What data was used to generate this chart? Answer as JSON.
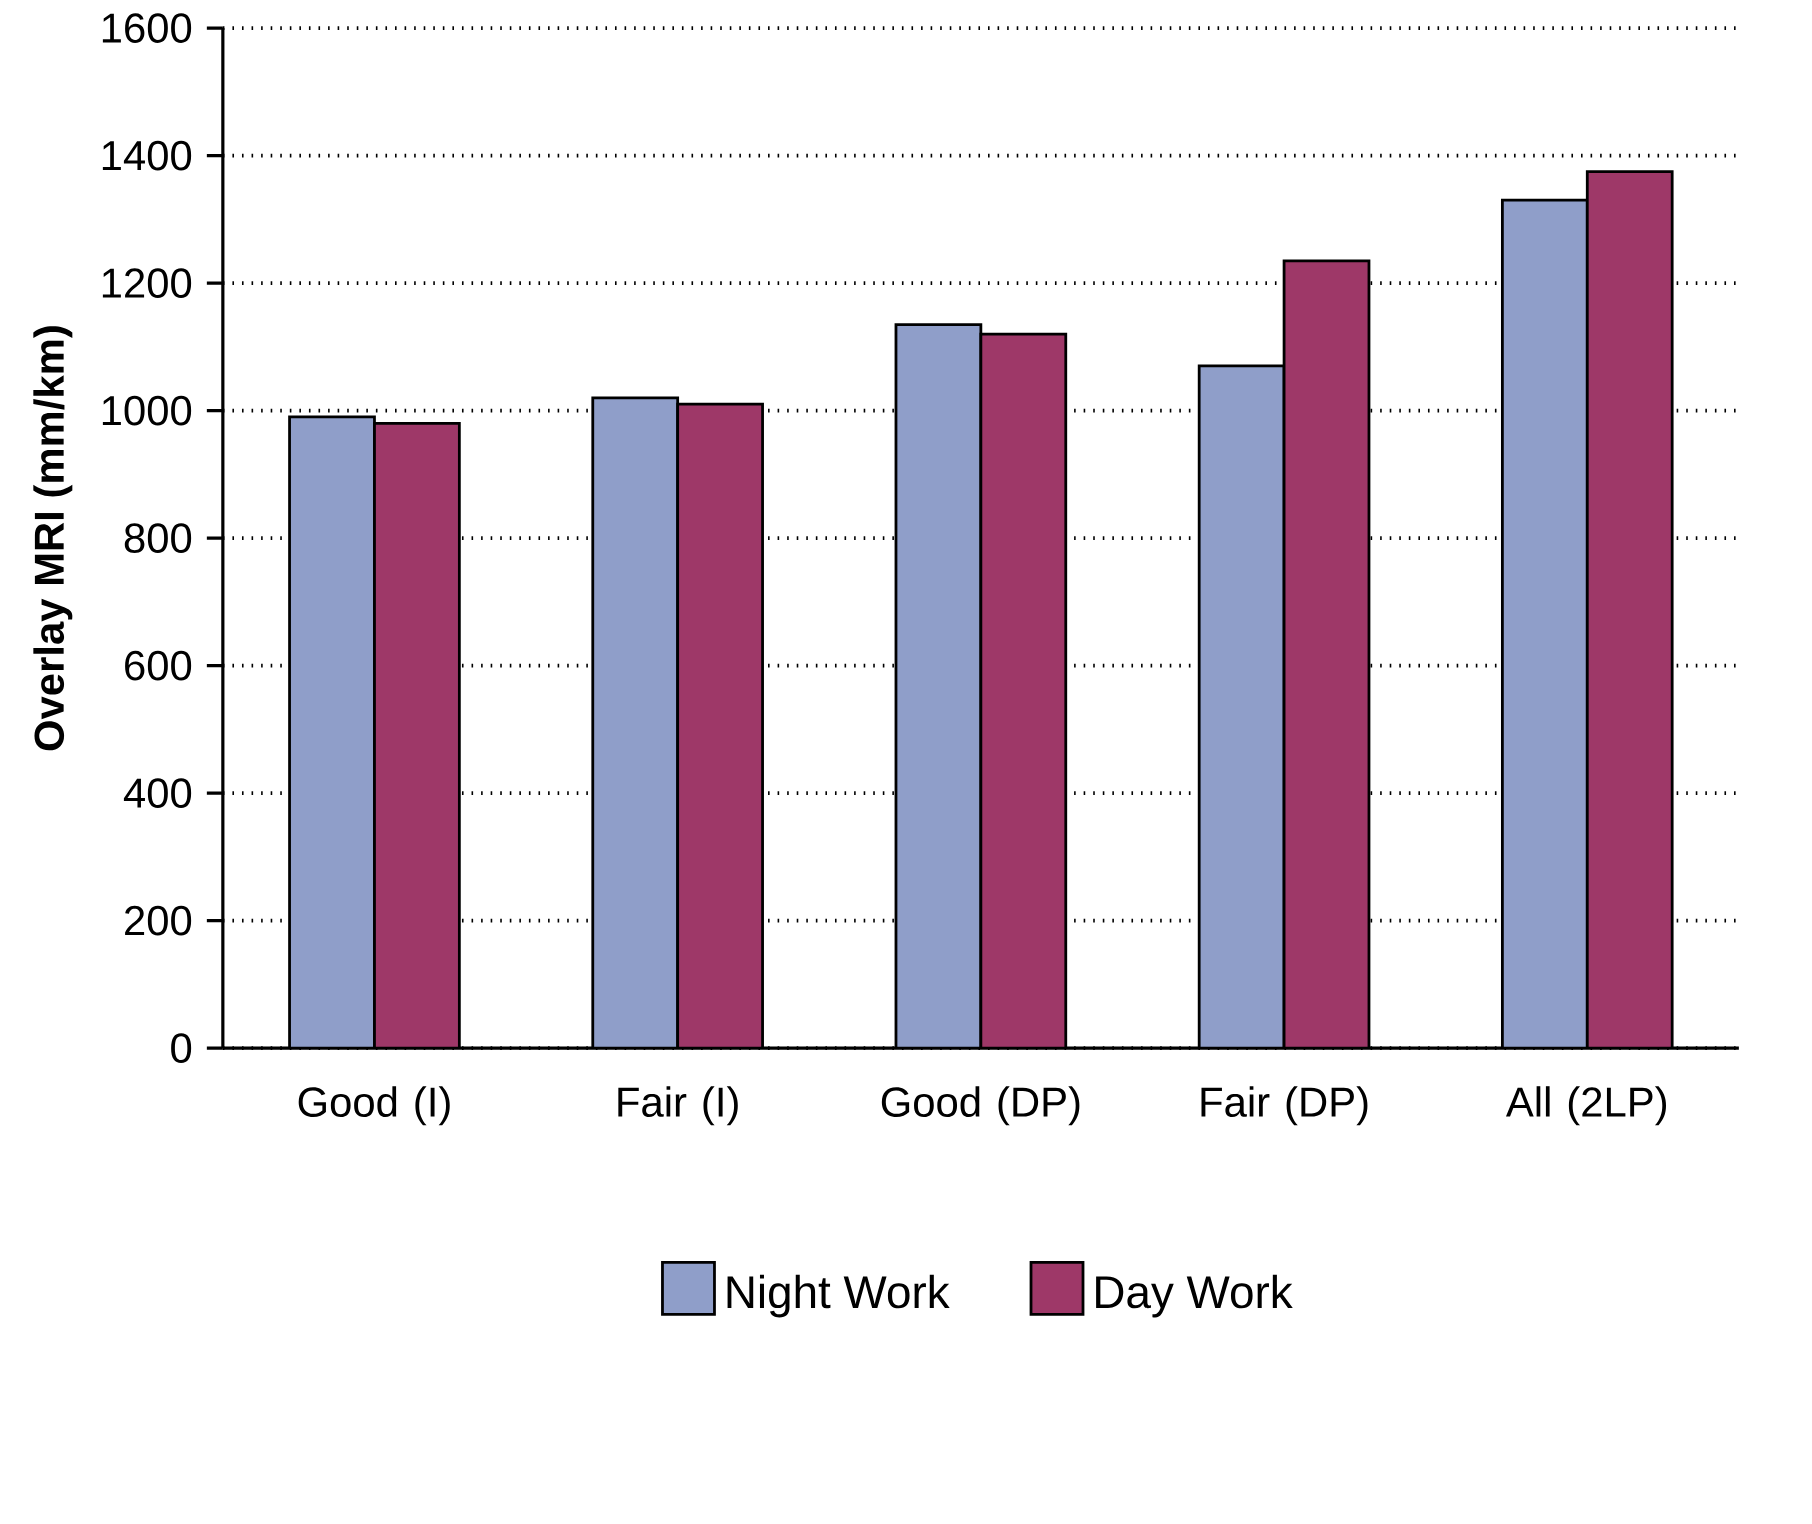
{
  "chart_data": {
    "type": "bar",
    "ylabel": "Overlay MRI (mm/km)",
    "categories": [
      "Good (I)",
      "Fair (I)",
      "Good (DP)",
      "Fair (DP)",
      "All (2LP)"
    ],
    "series": [
      {
        "name": "Night Work",
        "color": "#8f9ec9",
        "values": [
          990,
          1020,
          1135,
          1070,
          1330
        ]
      },
      {
        "name": "Day Work",
        "color": "#9e3868",
        "values": [
          980,
          1010,
          1120,
          1235,
          1375
        ]
      }
    ],
    "ylim": [
      0,
      1600
    ],
    "yticks": [
      0,
      200,
      400,
      600,
      800,
      1000,
      1200,
      1400,
      1600
    ],
    "grid": "y",
    "legend": "bottom"
  }
}
